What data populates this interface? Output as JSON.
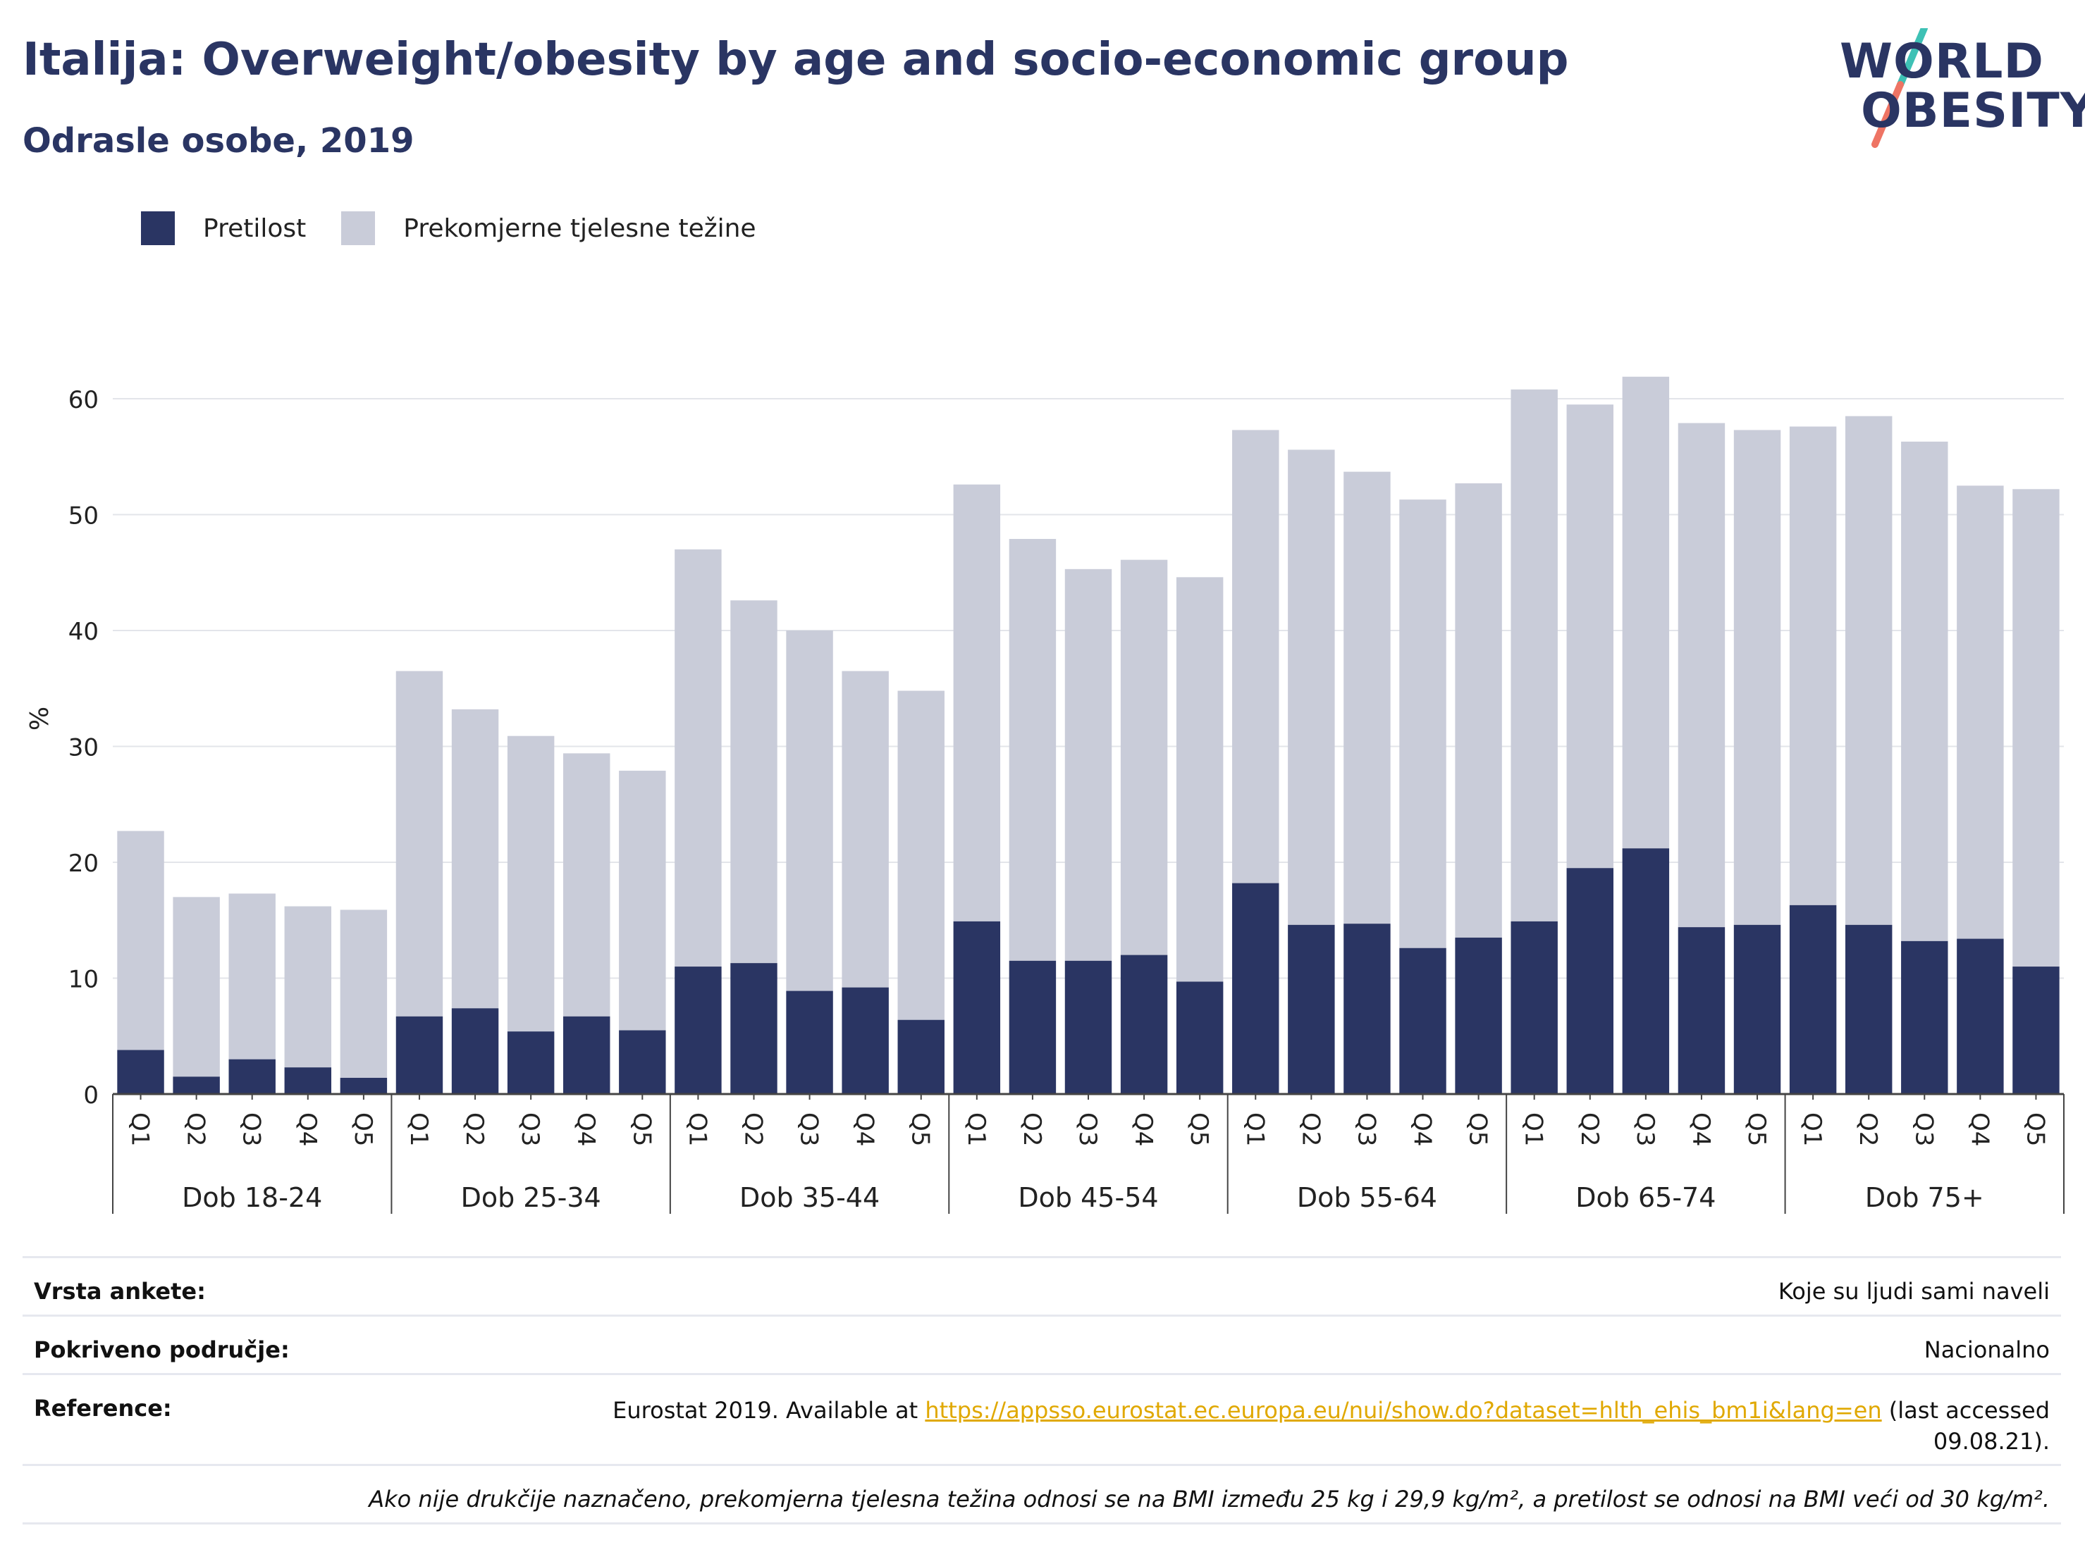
{
  "header": {
    "title": "Italija: Overweight/obesity by age and socio-economic group",
    "subtitle": "Odrasle osobe, 2019"
  },
  "logo": {
    "line1": "WORLD",
    "line2": "OBESITY"
  },
  "legend": {
    "obesity_label": "Pretilost",
    "overweight_label": "Prekomjerne tjelesne težine"
  },
  "colors": {
    "obesity": "#2a3563",
    "overweight": "#c9ccd9",
    "grid": "#e3e5ea",
    "link": "#e0a800",
    "logo_accent1": "#3ec1b5",
    "logo_accent2": "#ee7464"
  },
  "chart_data": {
    "type": "bar",
    "stacked": true,
    "ylabel": "%",
    "ylim": [
      0,
      60
    ],
    "yticks": [
      0,
      10,
      20,
      30,
      40,
      50,
      60
    ],
    "grid": true,
    "legend_position": "top-left",
    "groups": [
      {
        "label": "Dob 18-24",
        "categories": [
          "Q1",
          "Q2",
          "Q3",
          "Q4",
          "Q5"
        ],
        "total": [
          22.7,
          17.0,
          17.3,
          16.2,
          15.9
        ],
        "obesity": [
          3.8,
          1.5,
          3.0,
          2.3,
          1.4
        ]
      },
      {
        "label": "Dob 25-34",
        "categories": [
          "Q1",
          "Q2",
          "Q3",
          "Q4",
          "Q5"
        ],
        "total": [
          36.5,
          33.2,
          30.9,
          29.4,
          27.9
        ],
        "obesity": [
          6.7,
          7.4,
          5.4,
          6.7,
          5.5
        ]
      },
      {
        "label": "Dob 35-44",
        "categories": [
          "Q1",
          "Q2",
          "Q3",
          "Q4",
          "Q5"
        ],
        "total": [
          47.0,
          42.6,
          40.0,
          36.5,
          34.8
        ],
        "obesity": [
          11.0,
          11.3,
          8.9,
          9.2,
          6.4
        ]
      },
      {
        "label": "Dob 45-54",
        "categories": [
          "Q1",
          "Q2",
          "Q3",
          "Q4",
          "Q5"
        ],
        "total": [
          52.6,
          47.9,
          45.3,
          46.1,
          44.6
        ],
        "obesity": [
          14.9,
          11.5,
          11.5,
          12.0,
          9.7
        ]
      },
      {
        "label": "Dob 55-64",
        "categories": [
          "Q1",
          "Q2",
          "Q3",
          "Q4",
          "Q5"
        ],
        "total": [
          57.3,
          55.6,
          53.7,
          51.3,
          52.7
        ],
        "obesity": [
          18.2,
          14.6,
          14.7,
          12.6,
          13.5
        ]
      },
      {
        "label": "Dob 65-74",
        "categories": [
          "Q1",
          "Q2",
          "Q3",
          "Q4",
          "Q5"
        ],
        "total": [
          60.8,
          59.5,
          61.9,
          57.9,
          57.3
        ],
        "obesity": [
          14.9,
          19.5,
          21.2,
          14.4,
          14.6
        ]
      },
      {
        "label": "Dob 75+",
        "categories": [
          "Q1",
          "Q2",
          "Q3",
          "Q4",
          "Q5"
        ],
        "total": [
          57.6,
          58.5,
          56.3,
          52.5,
          52.2
        ],
        "obesity": [
          16.3,
          14.6,
          13.2,
          13.4,
          11.0
        ]
      }
    ]
  },
  "meta": {
    "survey_label": "Vrsta ankete:",
    "survey_value": "Koje su ljudi sami naveli",
    "coverage_label": "Pokriveno područje:",
    "coverage_value": "Nacionalno",
    "reference_label": "Reference:",
    "reference_prefix": "Eurostat 2019. Available at ",
    "reference_link": "https://appsso.eurostat.ec.europa.eu/nui/show.do?dataset=hlth_ehis_bm1i&lang=en",
    "reference_suffix": " (last accessed 09.08.21).",
    "footnote": "Ako nije drukčije naznačeno, prekomjerna tjelesna težina odnosi se na BMI između 25 kg i 29,9 kg/m², a pretilost se odnosi na BMI veći od 30 kg/m²."
  }
}
